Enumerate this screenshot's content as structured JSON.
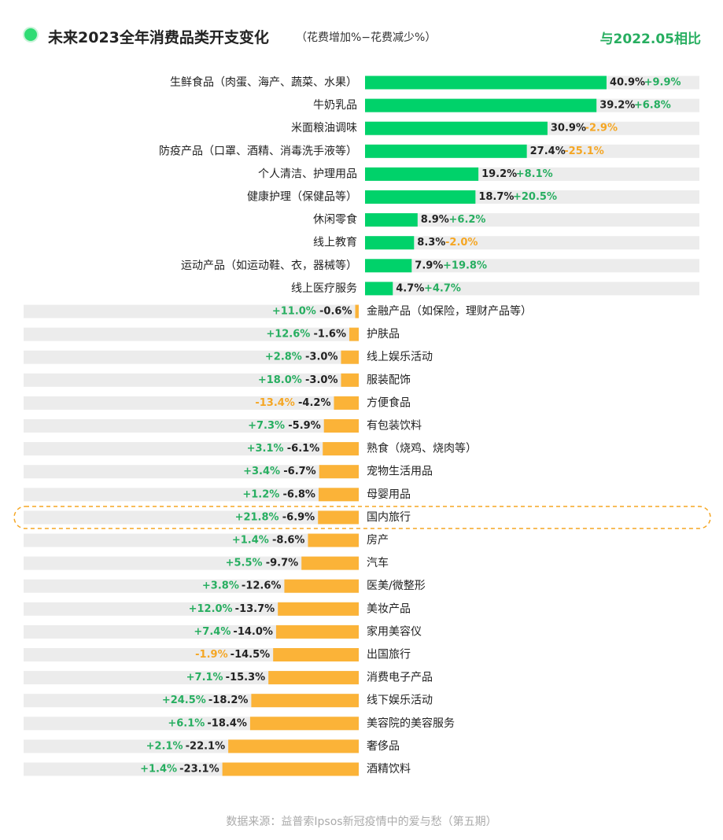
{
  "header": {
    "title": "未来2023全年消费品类开支变化",
    "subtitle": "（花费增加%−花费减少%）",
    "compare_label": "与2022.05相比"
  },
  "footer": {
    "source": "数据来源：益普索Ipsos新冠疫情中的爱与愁（第五期）"
  },
  "colors": {
    "positive_bar": "#00d26a",
    "negative_bar": "#fbb338",
    "track": "#ececec",
    "change_up": "#27ae60",
    "change_down": "#f5a623",
    "highlight_border": "#f5a623"
  },
  "chart_data": {
    "type": "bar",
    "orientation": "horizontal",
    "highlighted_category": "国内旅行",
    "categories": [
      "生鲜食品（肉蛋、海产、蔬菜、水果）",
      "牛奶乳品",
      "米面粮油调味",
      "防疫产品（口罩、酒精、消毒洗手液等）",
      "个人清洁、护理用品",
      "健康护理（保健品等）",
      "休闲零食",
      "线上教育",
      "运动产品（如运动鞋、衣，器械等）",
      "线上医疗服务",
      "金融产品（如保险，理财产品等）",
      "护肤品",
      "线上娱乐活动",
      "服装配饰",
      "方便食品",
      "有包装饮料",
      "熟食（烧鸡、烧肉等）",
      "宠物生活用品",
      "母婴用品",
      "国内旅行",
      "房产",
      "汽车",
      "医美/微整形",
      "美妆产品",
      "家用美容仪",
      "出国旅行",
      "消费电子产品",
      "线下娱乐活动",
      "美容院的美容服务",
      "奢侈品",
      "酒精饮料"
    ],
    "series": [
      {
        "name": "花费增加%−花费减少%",
        "values": [
          40.9,
          39.2,
          30.9,
          27.4,
          19.2,
          18.7,
          8.9,
          8.3,
          7.9,
          4.7,
          -0.6,
          -1.6,
          -3.0,
          -3.0,
          -4.2,
          -5.9,
          -6.1,
          -6.7,
          -6.8,
          -6.9,
          -8.6,
          -9.7,
          -12.6,
          -13.7,
          -14.0,
          -14.5,
          -15.3,
          -18.2,
          -18.4,
          -22.1,
          -23.1
        ],
        "labels": [
          "40.9%",
          "39.2%",
          "30.9%",
          "27.4%",
          "19.2%",
          "18.7%",
          "8.9%",
          "8.3%",
          "7.9%",
          "4.7%",
          "-0.6%",
          "-1.6%",
          "-3.0%",
          "-3.0%",
          "-4.2%",
          "-5.9%",
          "-6.1%",
          "-6.7%",
          "-6.8%",
          "-6.9%",
          "-8.6%",
          "-9.7%",
          "-12.6%",
          "-13.7%",
          "-14.0%",
          "-14.5%",
          "-15.3%",
          "-18.2%",
          "-18.4%",
          "-22.1%",
          "-23.1%"
        ]
      },
      {
        "name": "与2022.05相比",
        "values": [
          9.9,
          6.8,
          -2.9,
          -25.1,
          8.1,
          20.5,
          6.2,
          -2.0,
          19.8,
          4.7,
          11.0,
          12.6,
          2.8,
          18.0,
          -13.4,
          7.3,
          3.1,
          3.4,
          1.2,
          21.8,
          1.4,
          5.5,
          3.8,
          12.0,
          7.4,
          -1.9,
          7.1,
          24.5,
          6.1,
          2.1,
          1.4
        ],
        "labels": [
          "+9.9%",
          "+6.8%",
          "-2.9%",
          "-25.1%",
          "+8.1%",
          "+20.5%",
          "+6.2%",
          "-2.0%",
          "+19.8%",
          "+4.7%",
          "+11.0%",
          "+12.6%",
          "+2.8%",
          "+18.0%",
          "-13.4%",
          "+7.3%",
          "+3.1%",
          "+3.4%",
          "+1.2%",
          "+21.8%",
          "+1.4%",
          "+5.5%",
          "+3.8%",
          "+12.0%",
          "+7.4%",
          "-1.9%",
          "+7.1%",
          "+24.5%",
          "+6.1%",
          "+2.1%",
          "+1.4%"
        ]
      }
    ]
  }
}
